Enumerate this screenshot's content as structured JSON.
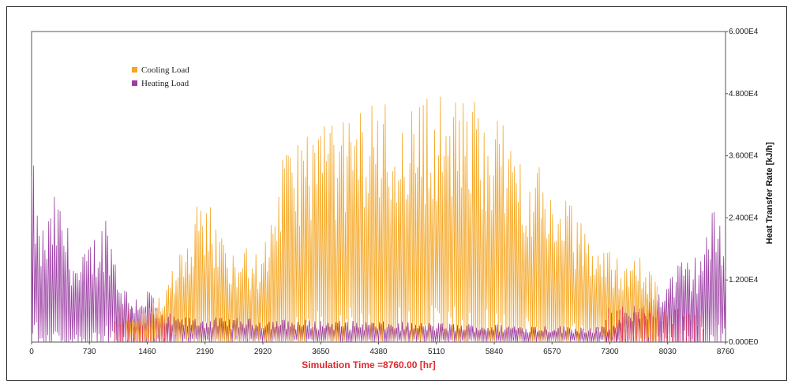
{
  "chart_data": {
    "type": "line",
    "title": "",
    "xlabel": "Simulation Time =8760.00 [hr]",
    "ylabel": "Heat Transfer Rate [kJ/h]",
    "xlim": [
      0,
      8760
    ],
    "ylim": [
      0,
      60000
    ],
    "x_ticks": [
      "0",
      "730",
      "1460",
      "2190",
      "2920",
      "3650",
      "4380",
      "5110",
      "5840",
      "6570",
      "7300",
      "8030",
      "8760"
    ],
    "y_ticks": [
      "0.000E0",
      "1.200E4",
      "2.400E4",
      "3.600E4",
      "4.800E4",
      "6.000E4"
    ],
    "legend_position": "top-left",
    "grid": false,
    "series": [
      {
        "name": "Cooling Load",
        "color": "#f5a623",
        "x": [
          1200,
          1460,
          1700,
          1900,
          2190,
          2400,
          2600,
          2920,
          3100,
          3300,
          3500,
          3650,
          3900,
          4100,
          4380,
          4600,
          4800,
          5110,
          5300,
          5500,
          5840,
          6100,
          6300,
          6570,
          6800,
          7000,
          7300,
          7600,
          7900
        ],
        "y": [
          5000,
          6000,
          12000,
          21000,
          30000,
          21000,
          19000,
          17000,
          33000,
          40000,
          42000,
          44000,
          42000,
          46000,
          48000,
          45000,
          47000,
          49000,
          47000,
          48000,
          45000,
          39000,
          36000,
          31000,
          27000,
          22000,
          18000,
          18000,
          12000
        ]
      },
      {
        "name": "Heating Load",
        "color": "#9b3fa3",
        "x": [
          0,
          100,
          200,
          300,
          400,
          500,
          600,
          730,
          850,
          950,
          1100,
          1250,
          1400,
          1500,
          1650,
          7300,
          7500,
          7700,
          7900,
          8030,
          8200,
          8400,
          8600,
          8760
        ],
        "y": [
          38000,
          22000,
          24000,
          29000,
          26000,
          20000,
          15000,
          20000,
          22000,
          26000,
          14000,
          9000,
          10000,
          11000,
          5000,
          3000,
          6000,
          8000,
          11000,
          13000,
          16000,
          17000,
          26000,
          24000
        ]
      }
    ]
  }
}
